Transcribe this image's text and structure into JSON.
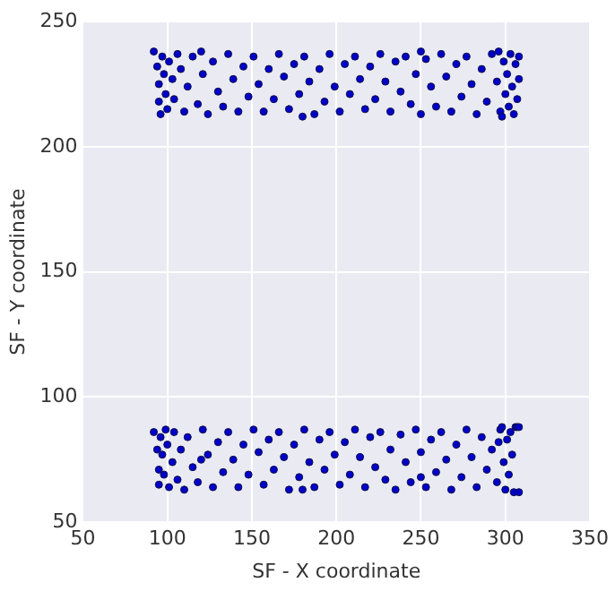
{
  "chart_data": {
    "type": "scatter",
    "xlabel": "SF - X coordinate",
    "ylabel": "SF - Y coordinate",
    "xlim": [
      50,
      350
    ],
    "xticks": [
      50,
      100,
      150,
      200,
      250,
      300,
      350
    ],
    "ylim": [
      50,
      250
    ],
    "yticks": [
      50,
      100,
      150,
      200,
      250
    ],
    "grid": true,
    "marker": "circle",
    "series": [
      {
        "color": "#0000c8",
        "x": [
          92,
          94,
          95,
          95,
          96,
          97,
          98,
          99,
          100,
          101,
          103,
          104,
          106,
          108,
          110,
          112,
          115,
          118,
          121,
          124,
          127,
          130,
          133,
          136,
          139,
          142,
          145,
          148,
          151,
          154,
          157,
          160,
          163,
          166,
          169,
          172,
          175,
          178,
          181,
          184,
          187,
          190,
          193,
          196,
          199,
          202,
          205,
          208,
          211,
          214,
          217,
          220,
          223,
          226,
          229,
          232,
          235,
          238,
          241,
          244,
          247,
          250,
          253,
          256,
          259,
          262,
          265,
          268,
          271,
          274,
          277,
          280,
          283,
          286,
          289,
          292,
          295,
          297,
          299,
          300,
          301,
          302,
          303,
          304,
          305,
          306,
          307,
          308,
          308,
          298,
          296,
          120,
          250,
          180
        ],
        "values": [
          238,
          232,
          225,
          218,
          213,
          236,
          229,
          221,
          215,
          234,
          227,
          219,
          237,
          231,
          214,
          224,
          236,
          217,
          229,
          213,
          234,
          222,
          216,
          237,
          227,
          214,
          232,
          220,
          236,
          225,
          214,
          231,
          219,
          237,
          228,
          215,
          233,
          221,
          236,
          226,
          213,
          231,
          218,
          237,
          224,
          214,
          233,
          221,
          236,
          227,
          215,
          232,
          219,
          237,
          226,
          214,
          234,
          222,
          236,
          217,
          229,
          213,
          235,
          224,
          216,
          237,
          228,
          214,
          233,
          220,
          236,
          225,
          213,
          231,
          218,
          237,
          226,
          214,
          234,
          221,
          229,
          216,
          237,
          224,
          213,
          233,
          219,
          236,
          227,
          212,
          238,
          238,
          238,
          212
        ]
      },
      {
        "color": "#0000c8",
        "x": [
          92,
          94,
          95,
          95,
          96,
          97,
          98,
          99,
          100,
          101,
          103,
          104,
          106,
          108,
          110,
          112,
          115,
          118,
          121,
          124,
          127,
          130,
          133,
          136,
          139,
          142,
          145,
          148,
          151,
          154,
          157,
          160,
          163,
          166,
          169,
          172,
          175,
          178,
          181,
          184,
          187,
          190,
          193,
          196,
          199,
          202,
          205,
          208,
          211,
          214,
          217,
          220,
          223,
          226,
          229,
          232,
          235,
          238,
          241,
          244,
          247,
          250,
          253,
          256,
          259,
          262,
          265,
          268,
          271,
          274,
          277,
          280,
          283,
          286,
          289,
          292,
          295,
          297,
          299,
          300,
          301,
          302,
          303,
          304,
          305,
          306,
          307,
          308,
          308,
          298,
          296,
          120,
          250,
          180
        ],
        "values": [
          86,
          79,
          71,
          65,
          84,
          77,
          69,
          87,
          81,
          64,
          74,
          86,
          67,
          79,
          63,
          84,
          72,
          66,
          87,
          77,
          64,
          82,
          70,
          86,
          75,
          64,
          81,
          69,
          87,
          78,
          65,
          83,
          71,
          86,
          76,
          63,
          81,
          68,
          87,
          74,
          64,
          83,
          71,
          86,
          77,
          65,
          82,
          69,
          87,
          76,
          64,
          84,
          72,
          86,
          67,
          79,
          63,
          85,
          74,
          66,
          87,
          78,
          64,
          83,
          70,
          86,
          75,
          63,
          81,
          68,
          87,
          76,
          64,
          84,
          71,
          79,
          66,
          87,
          74,
          63,
          83,
          69,
          86,
          77,
          62,
          88,
          88,
          88,
          62,
          88,
          82,
          75,
          68,
          63
        ]
      }
    ]
  }
}
